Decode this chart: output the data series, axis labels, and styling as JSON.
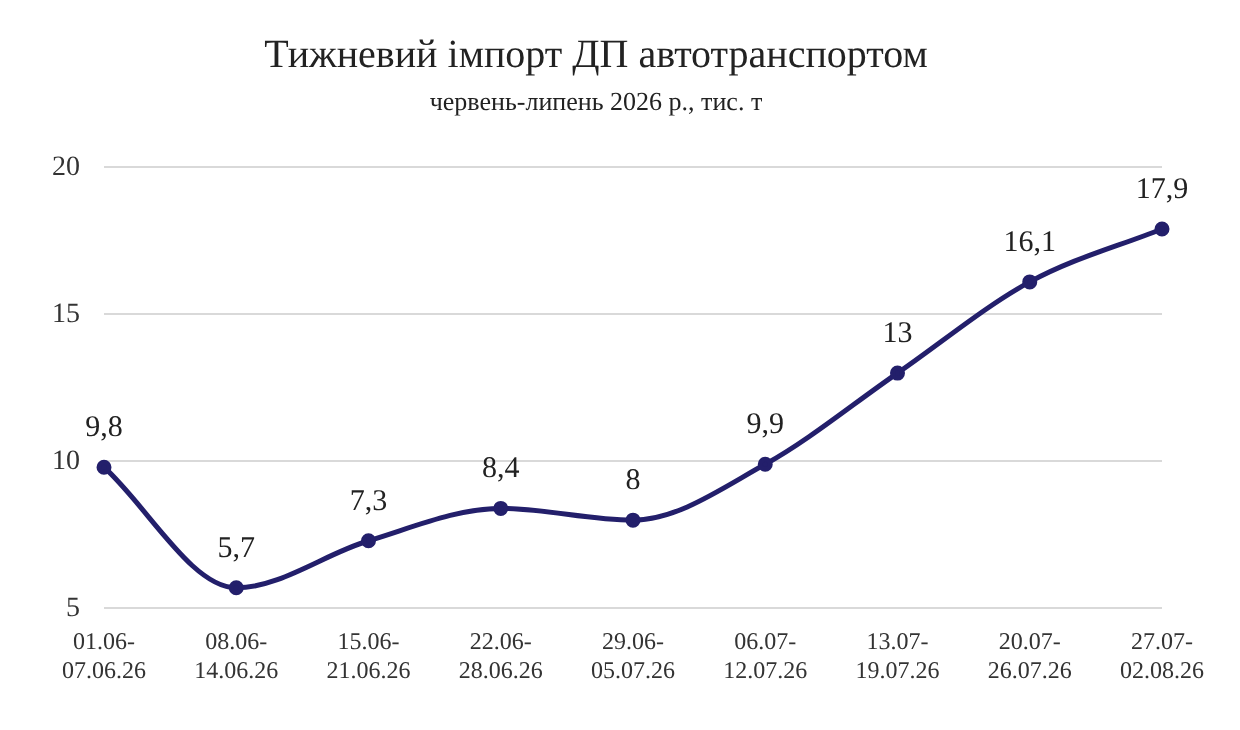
{
  "chart_data": {
    "type": "line",
    "title": "Тижневий імпорт ДП автотранспортом",
    "subtitle": "червень-липень 2026 р., тис. т",
    "categories": [
      "01.06-07.06.26",
      "08.06-14.06.26",
      "15.06-21.06.26",
      "22.06-28.06.26",
      "29.06-05.07.26",
      "06.07-12.07.26",
      "13.07-19.07.26",
      "20.07-26.07.26",
      "27.07-02.08.26"
    ],
    "series": [
      {
        "color": "#231f6b",
        "values": [
          9.8,
          5.7,
          7.3,
          8.4,
          8,
          9.9,
          13,
          16.1,
          17.9
        ],
        "value_labels": [
          "9,8",
          "5,7",
          "7,3",
          "8,4",
          "8",
          "9,9",
          "13",
          "16,1",
          "17,9"
        ]
      }
    ],
    "ylim": [
      5,
      20
    ],
    "yticks": [
      5,
      10,
      15,
      20
    ],
    "grid": "y",
    "legend": false,
    "marker": "circle",
    "line_style": "solid"
  }
}
